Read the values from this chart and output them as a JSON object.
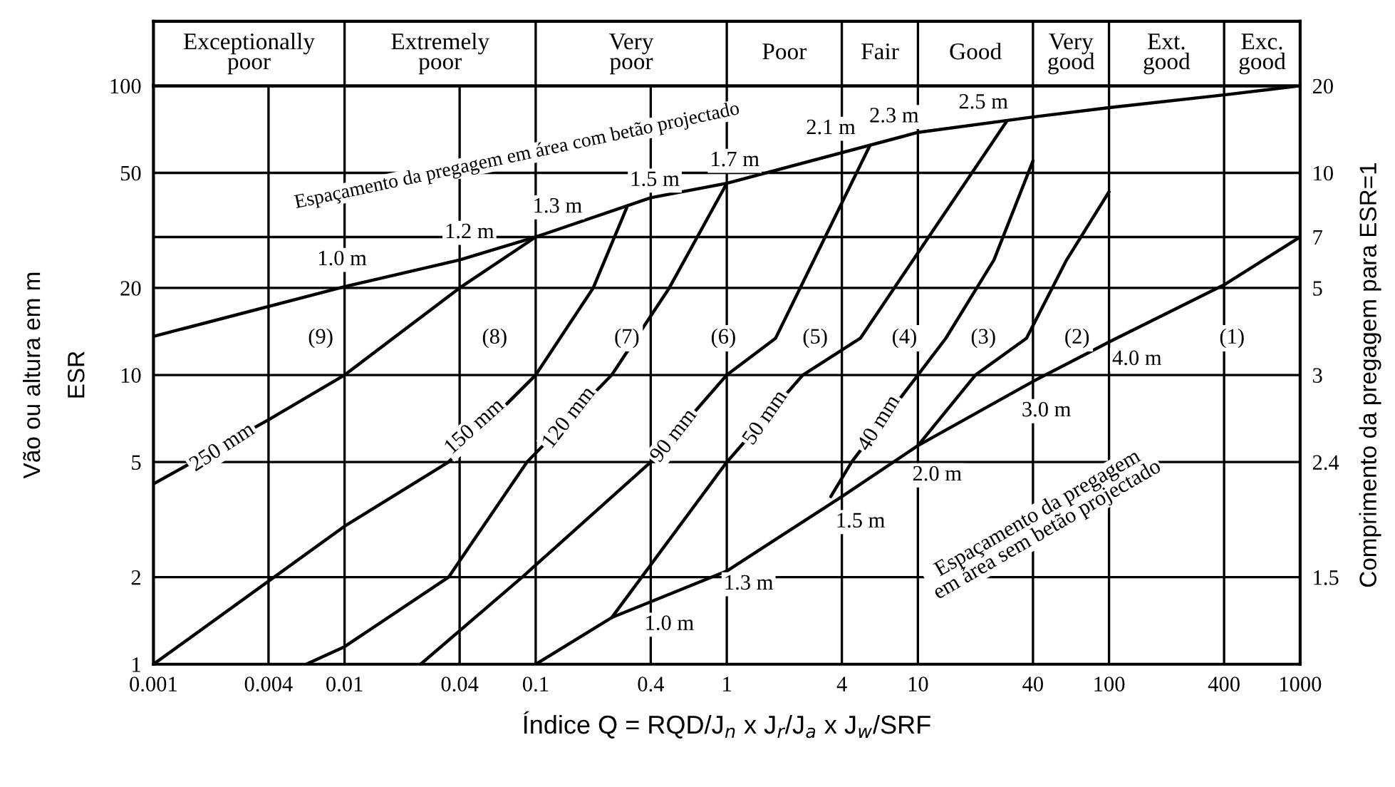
{
  "chart_data": {
    "type": "line",
    "xlabel": "Índice Q = RQD/J$_{n}$ x J$_{r}$/J$_{a}$ x J$_{w}$/SRF",
    "ylabel": "Vão ou altura em m\nESR",
    "y2label": "Comprimento da pregagem para ESR=1",
    "log": "xy",
    "grid": true,
    "xlim": [
      0.001,
      1000
    ],
    "xticks": [
      0.001,
      0.004,
      0.01,
      0.04,
      0.1,
      0.4,
      1,
      4,
      10,
      40,
      100,
      400,
      1000
    ],
    "ylim": [
      1,
      100
    ],
    "yticks": [
      1,
      2,
      5,
      10,
      20,
      {
        "value": 30,
        "label": null
      },
      50,
      100
    ],
    "y2_categories": [
      "20",
      "10",
      "7",
      "5",
      "3",
      "2.4",
      "1.5"
    ],
    "series": [
      {
        "color": "#000000",
        "x": [
          0.001,
          0.01,
          0.04,
          0.1,
          0.4,
          1,
          10,
          40,
          100,
          400,
          1000
        ],
        "values": [
          13.6,
          20.2,
          25,
          30,
          41,
          46,
          69,
          78,
          84,
          93,
          100
        ]
      },
      {
        "color": "#000000",
        "x": [
          0.1,
          0.25,
          1,
          4,
          10,
          40,
          100,
          400,
          1000
        ],
        "values": [
          1,
          1.45,
          2.1,
          3.8,
          5.7,
          9.5,
          13,
          20.5,
          30
        ]
      },
      {
        "color": "#000000",
        "x": [
          0.001,
          0.004,
          0.01,
          0.04,
          0.1
        ],
        "values": [
          4.2,
          7,
          10,
          20,
          30
        ]
      },
      {
        "color": "#000000",
        "x": [
          0.001,
          0.01,
          0.035,
          0.1,
          0.2,
          0.3
        ],
        "values": [
          1,
          3,
          5,
          10,
          20,
          38
        ]
      },
      {
        "color": "#000000",
        "x": [
          0.0063,
          0.01,
          0.035,
          0.09,
          0.25,
          0.5,
          1
        ],
        "values": [
          1,
          1.15,
          2,
          5,
          10,
          20,
          46
        ]
      },
      {
        "color": "#000000",
        "x": [
          0.025,
          0.085,
          0.4,
          1,
          1.8,
          5.6
        ],
        "values": [
          1,
          2,
          5,
          10,
          13.4,
          62
        ]
      },
      {
        "color": "#000000",
        "x": [
          0.25,
          1,
          2.5,
          5,
          29
        ],
        "values": [
          1.45,
          5,
          10,
          13.4,
          75
        ]
      },
      {
        "color": "#000000",
        "x": [
          3.5,
          4.5,
          10,
          14,
          25,
          40
        ],
        "values": [
          3.8,
          5,
          10,
          13.4,
          25,
          55
        ]
      },
      {
        "color": "#000000",
        "x": [
          10,
          20,
          37,
          60,
          100
        ],
        "values": [
          5.7,
          10,
          13.4,
          25,
          43
        ]
      }
    ],
    "annotations": [
      {
        "text": "1.0 m",
        "x": 0.0097,
        "y": 25
      },
      {
        "text": "1.2 m",
        "x": 0.045,
        "y": 31
      },
      {
        "text": "1.3 m",
        "x": 0.13,
        "y": 38
      },
      {
        "text": "1.5 m",
        "x": 0.42,
        "y": 47
      },
      {
        "text": "1.7 m",
        "x": 1.1,
        "y": 55
      },
      {
        "text": "2.1 m",
        "x": 3.5,
        "y": 71
      },
      {
        "text": "2.3 m",
        "x": 7.5,
        "y": 78
      },
      {
        "text": "2.5 m",
        "x": 22,
        "y": 87
      },
      {
        "text": "1.0 m",
        "x": 0.5,
        "y": 1.37
      },
      {
        "text": "1.3 m",
        "x": 1.3,
        "y": 1.89
      },
      {
        "text": "1.5 m",
        "x": 5,
        "y": 3.1
      },
      {
        "text": "2.0 m",
        "x": 12.6,
        "y": 4.5
      },
      {
        "text": "3.0 m",
        "x": 47,
        "y": 7.5
      },
      {
        "text": "4.0 m",
        "x": 140,
        "y": 11.3
      },
      {
        "text": "250 mm",
        "x": 0.0023,
        "y": 5.6
      },
      {
        "text": "150 mm",
        "x": 0.048,
        "y": 6.6
      },
      {
        "text": "120 mm",
        "x": 0.15,
        "y": 7.1
      },
      {
        "text": "90 mm",
        "x": 0.53,
        "y": 6.15
      },
      {
        "text": "50 mm",
        "x": 1.6,
        "y": 7.1
      },
      {
        "text": "40 mm",
        "x": 6.3,
        "y": 6.8
      },
      "Espaçamento da pregagem em área com betão projectado",
      "Espaçamento da pregagem\nem área sem betão projectado",
      "(9)",
      "(8)",
      "(7)",
      "(6)",
      "(5)",
      "(4)",
      "(3)",
      "(2)",
      "(1)",
      "Exceptionally\npoor",
      "Extremely\npoor",
      "Very\npoor",
      "Poor",
      "Fair",
      "Good",
      "Very\ngood",
      "Ext.\ngood",
      "Exc.\ngood"
    ]
  }
}
